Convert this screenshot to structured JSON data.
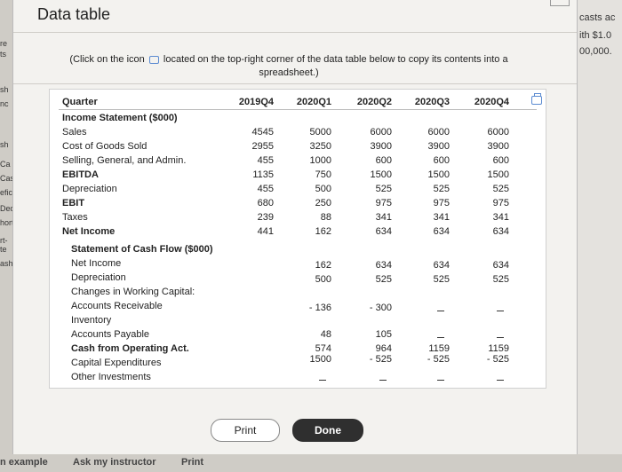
{
  "window": {
    "title": "Data table"
  },
  "instructions": {
    "before_icon": "(Click on the icon",
    "after_icon": "located on the top-right corner of the data table below to copy its contents into a spreadsheet.)"
  },
  "table": {
    "header_label": "Quarter",
    "columns": [
      "2019Q4",
      "2020Q1",
      "2020Q2",
      "2020Q3",
      "2020Q4"
    ],
    "rows": [
      {
        "label": "Income Statement ($000)",
        "bold": true,
        "indent": 0,
        "values": [
          "",
          "",
          "",
          "",
          ""
        ]
      },
      {
        "label": "Sales",
        "bold": false,
        "indent": 0,
        "values": [
          "4545",
          "5000",
          "6000",
          "6000",
          "6000"
        ]
      },
      {
        "label": "Cost of Goods Sold",
        "bold": false,
        "indent": 0,
        "values": [
          "2955",
          "3250",
          "3900",
          "3900",
          "3900"
        ]
      },
      {
        "label": "Selling, General, and Admin.",
        "bold": false,
        "indent": 0,
        "values": [
          "455",
          "1000",
          "600",
          "600",
          "600"
        ]
      },
      {
        "label": "EBITDA",
        "bold": true,
        "indent": 0,
        "values": [
          "1135",
          "750",
          "1500",
          "1500",
          "1500"
        ]
      },
      {
        "label": "Depreciation",
        "bold": false,
        "indent": 0,
        "values": [
          "455",
          "500",
          "525",
          "525",
          "525"
        ]
      },
      {
        "label": "EBIT",
        "bold": true,
        "indent": 0,
        "values": [
          "680",
          "250",
          "975",
          "975",
          "975"
        ]
      },
      {
        "label": "Taxes",
        "bold": false,
        "indent": 0,
        "values": [
          "239",
          "88",
          "341",
          "341",
          "341"
        ]
      },
      {
        "label": "Net Income",
        "bold": true,
        "indent": 0,
        "values": [
          "441",
          "162",
          "634",
          "634",
          "634"
        ]
      },
      {
        "label": "Statement of Cash Flow ($000)",
        "bold": true,
        "indent": 1,
        "values": [
          "",
          "",
          "",
          "",
          ""
        ]
      },
      {
        "label": "Net Income",
        "bold": false,
        "indent": 1,
        "values": [
          "",
          "162",
          "634",
          "634",
          "634"
        ]
      },
      {
        "label": "Depreciation",
        "bold": false,
        "indent": 1,
        "values": [
          "",
          "500",
          "525",
          "525",
          "525"
        ]
      },
      {
        "label": "Changes in Working Capital:",
        "bold": false,
        "indent": 1,
        "values": [
          "",
          "",
          "",
          "",
          ""
        ]
      },
      {
        "label": "Accounts Receivable",
        "bold": false,
        "indent": 1,
        "values": [
          "",
          "- 136",
          "- 300",
          "",
          ""
        ]
      },
      {
        "label": "Inventory",
        "bold": false,
        "indent": 1,
        "values": [
          "",
          "",
          "",
          "",
          ""
        ]
      },
      {
        "label": "Accounts Payable",
        "bold": false,
        "indent": 1,
        "values": [
          "",
          "48",
          "105",
          "",
          ""
        ]
      },
      {
        "label": "Cash from Operating Act.",
        "bold": true,
        "indent": 1,
        "values": [
          "",
          "574",
          "964",
          "1159",
          "1159"
        ]
      },
      {
        "label": "Capital Expenditures",
        "bold": false,
        "indent": 1,
        "values": [
          "",
          "1500",
          "- 525",
          "- 525",
          "- 525"
        ]
      },
      {
        "label": "Other Investments",
        "bold": false,
        "indent": 1,
        "values": [
          "",
          "",
          "",
          "",
          ""
        ]
      }
    ]
  },
  "buttons": {
    "print": "Print",
    "done": "Done"
  },
  "background": {
    "left_fragments": [
      "re",
      "ts",
      "sh",
      "nc",
      "sh",
      "Ca",
      "Cas",
      "efic",
      "Ded",
      "hort",
      "rt-te",
      "ash"
    ],
    "right_fragments": [
      "casts ac",
      "ith $1.0",
      "00,000."
    ],
    "bottom_fragments": [
      "n example",
      "Ask my instructor",
      "Print"
    ]
  }
}
